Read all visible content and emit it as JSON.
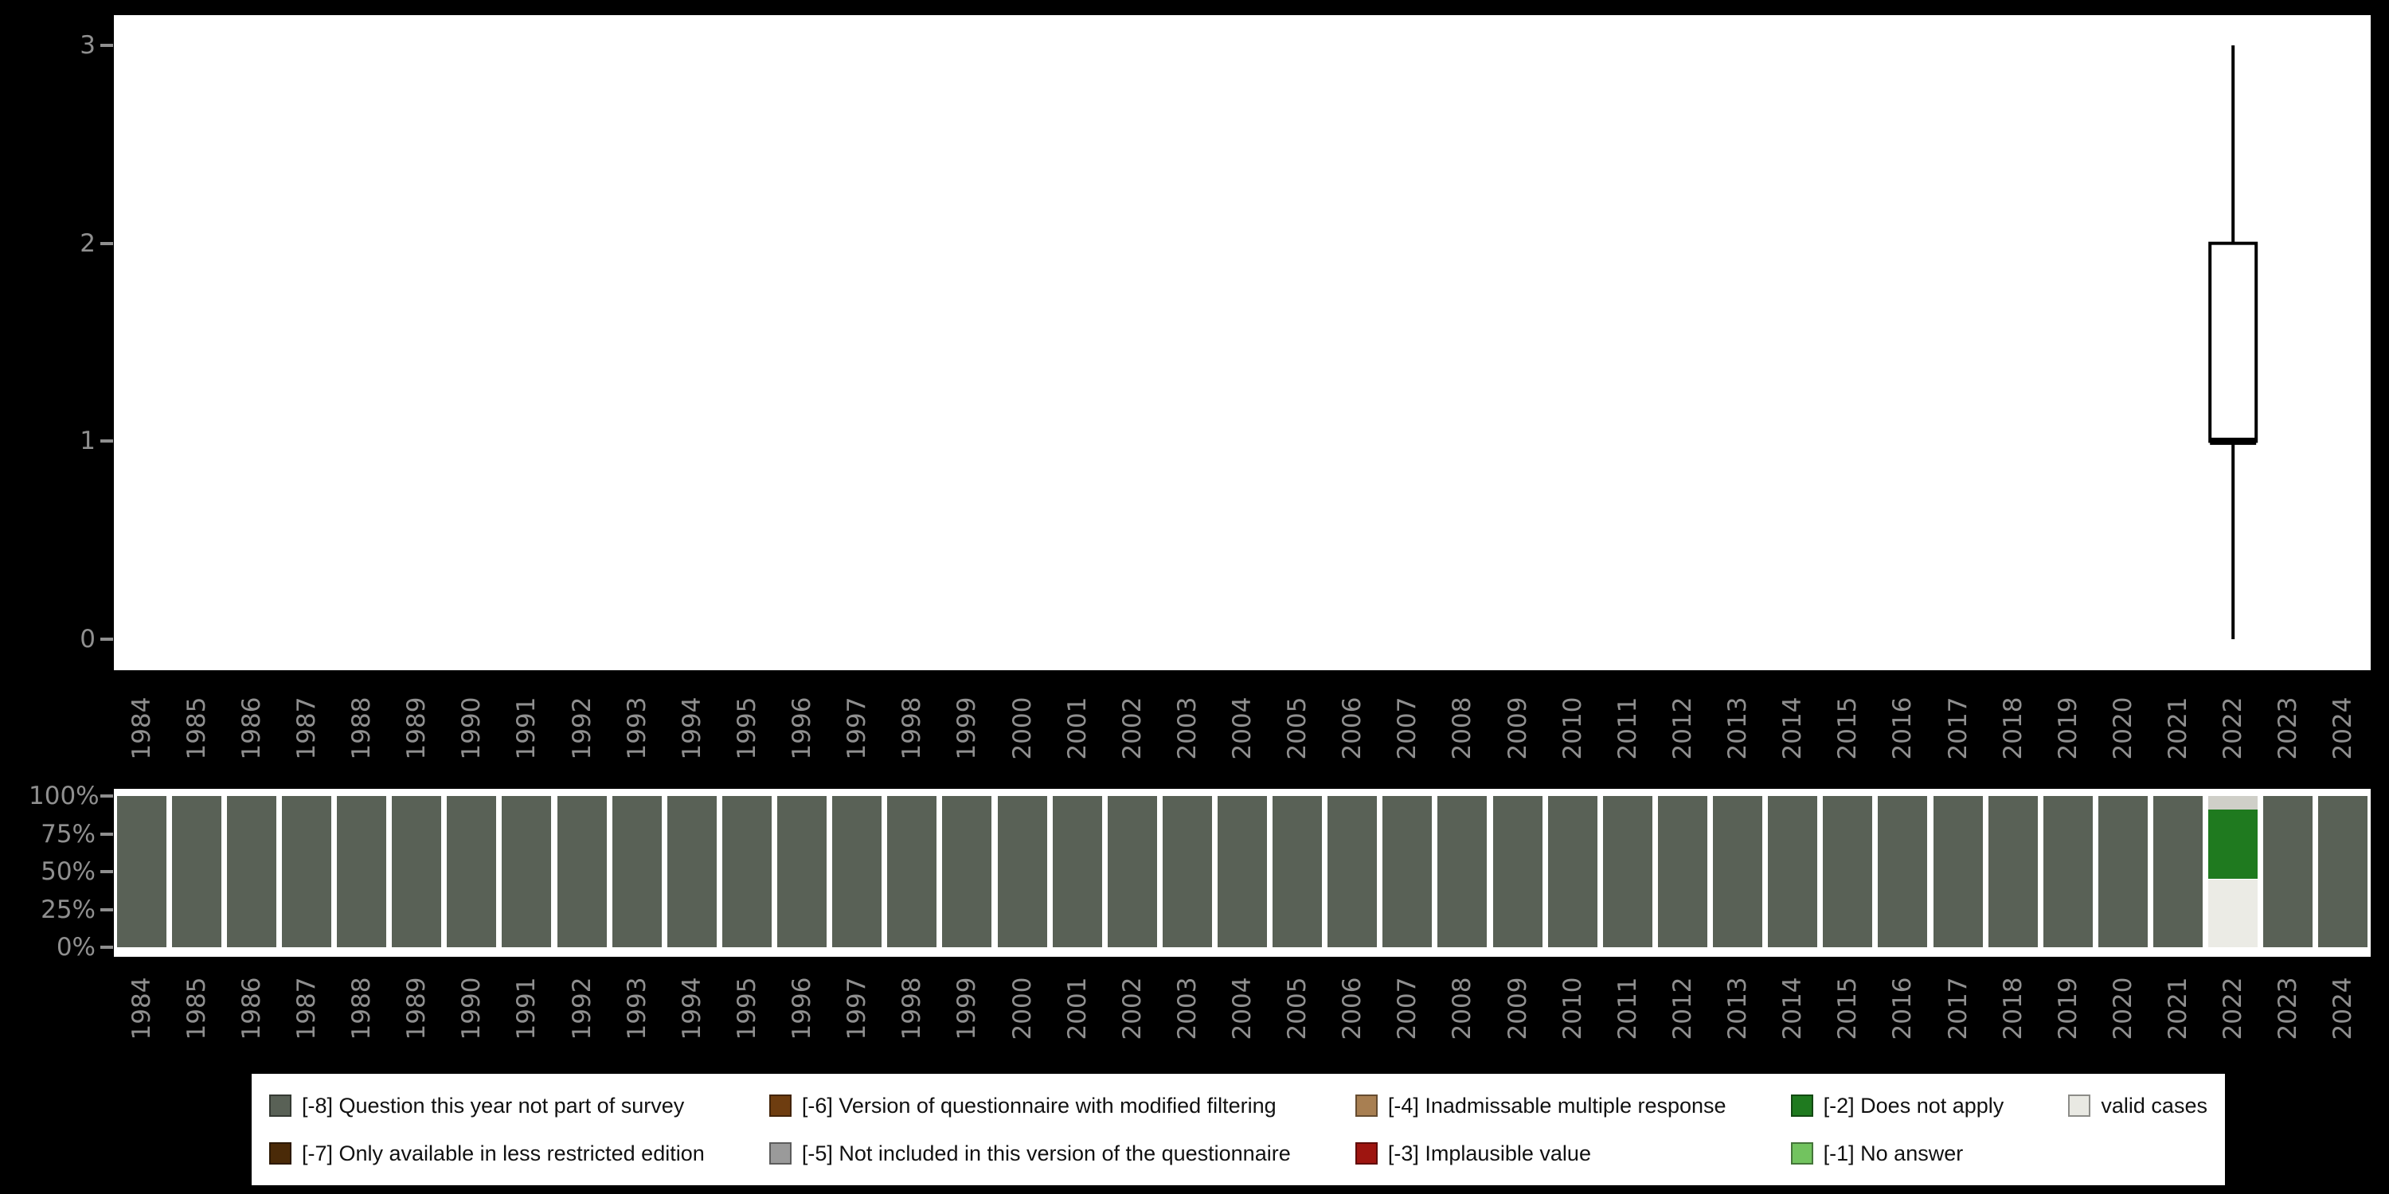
{
  "colors": {
    "background": "#000000",
    "panel": "#ffffff",
    "axis_text": "#8f8f8f",
    "box_stroke": "#000000"
  },
  "chart_data": [
    {
      "type": "boxplot",
      "title": "",
      "xlabel": "",
      "ylabel": "",
      "ylim": [
        0,
        3
      ],
      "yticks": [
        0,
        1,
        2,
        3
      ],
      "x_categories": [
        "1984",
        "1985",
        "1986",
        "1987",
        "1988",
        "1989",
        "1990",
        "1991",
        "1992",
        "1993",
        "1994",
        "1995",
        "1996",
        "1997",
        "1998",
        "1999",
        "2000",
        "2001",
        "2002",
        "2003",
        "2004",
        "2005",
        "2006",
        "2007",
        "2008",
        "2009",
        "2010",
        "2011",
        "2012",
        "2013",
        "2014",
        "2015",
        "2016",
        "2017",
        "2018",
        "2019",
        "2020",
        "2021",
        "2022",
        "2023",
        "2024"
      ],
      "series": [
        {
          "x": "2022",
          "low": 0,
          "q1": 1,
          "median": 1,
          "q3": 2,
          "high": 3
        }
      ]
    },
    {
      "type": "bar",
      "stacked_percent": true,
      "title": "",
      "xlabel": "",
      "ylabel": "",
      "ytick_labels": [
        "0%",
        "25%",
        "50%",
        "75%",
        "100%"
      ],
      "ytick_values": [
        0,
        25,
        50,
        75,
        100
      ],
      "x_categories": [
        "1984",
        "1985",
        "1986",
        "1987",
        "1988",
        "1989",
        "1990",
        "1991",
        "1992",
        "1993",
        "1994",
        "1995",
        "1996",
        "1997",
        "1998",
        "1999",
        "2000",
        "2001",
        "2002",
        "2003",
        "2004",
        "2005",
        "2006",
        "2007",
        "2008",
        "2009",
        "2010",
        "2011",
        "2012",
        "2013",
        "2014",
        "2015",
        "2016",
        "2017",
        "2018",
        "2019",
        "2020",
        "2021",
        "2022",
        "2023",
        "2024"
      ],
      "default_segments": [
        {
          "label": "[-8] Question this year not part of survey",
          "pct": 100,
          "color": "#596156"
        }
      ],
      "overrides": {
        "2022": [
          {
            "label": "valid cases",
            "pct": 45,
            "color": "#ebebe5"
          },
          {
            "label": "[-2] Does not apply",
            "pct": 46,
            "color": "#1f7a1f"
          },
          {
            "label": "[-5] Not included in this version of the questionnaire",
            "pct": 9,
            "color": "#cfcfc8"
          }
        ]
      }
    }
  ],
  "legend": {
    "items": [
      {
        "label": "[-8] Question this year not part of survey",
        "color": "#596156"
      },
      {
        "label": "[-7] Only available in less restricted edition",
        "color": "#4a2a08"
      },
      {
        "label": "[-6] Version of questionnaire with modified filtering",
        "color": "#6e3d10"
      },
      {
        "label": "[-5] Not included in this version of the questionnaire",
        "color": "#9a9a9a"
      },
      {
        "label": "[-4] Inadmissable multiple response",
        "color": "#a87f52"
      },
      {
        "label": "[-3] Implausible value",
        "color": "#9e1510"
      },
      {
        "label": "[-2] Does not apply",
        "color": "#1f7a1f"
      },
      {
        "label": "[-1] No answer",
        "color": "#72c35f"
      },
      {
        "label": "valid cases",
        "color": "#e9e9e3"
      }
    ]
  }
}
